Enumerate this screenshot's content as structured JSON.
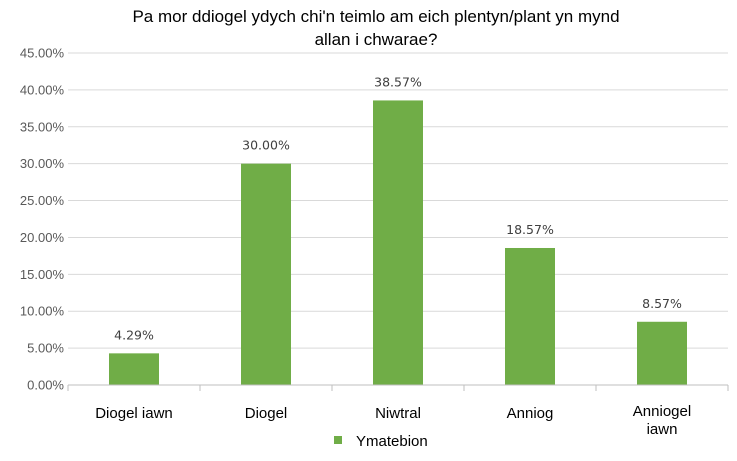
{
  "chart_data": {
    "type": "bar",
    "title_lines": [
      "Pa mor ddiogel ydych chi'n teimlo am eich plentyn/plant yn mynd",
      "allan i chwarae?"
    ],
    "categories": [
      [
        "Diogel iawn"
      ],
      [
        "Diogel"
      ],
      [
        "Niwtral"
      ],
      [
        "Anniog"
      ],
      [
        "Anniogel",
        "iawn"
      ]
    ],
    "series": [
      {
        "name": "Ymatebion",
        "values": [
          4.29,
          30.0,
          38.57,
          18.57,
          8.57
        ],
        "labels": [
          "4.29%",
          "30.00%",
          "38.57%",
          "18.57%",
          "8.57%"
        ]
      }
    ],
    "y_ticks": [
      "0.00%",
      "5.00%",
      "10.00%",
      "15.00%",
      "20.00%",
      "25.00%",
      "30.00%",
      "35.00%",
      "40.00%",
      "45.00%"
    ],
    "ylim": [
      0,
      45
    ],
    "grid": true,
    "legend_position": "bottom",
    "colors": {
      "bar": "#70ad47",
      "grid": "#d9d9d9",
      "axis": "#bfbfbf"
    }
  }
}
